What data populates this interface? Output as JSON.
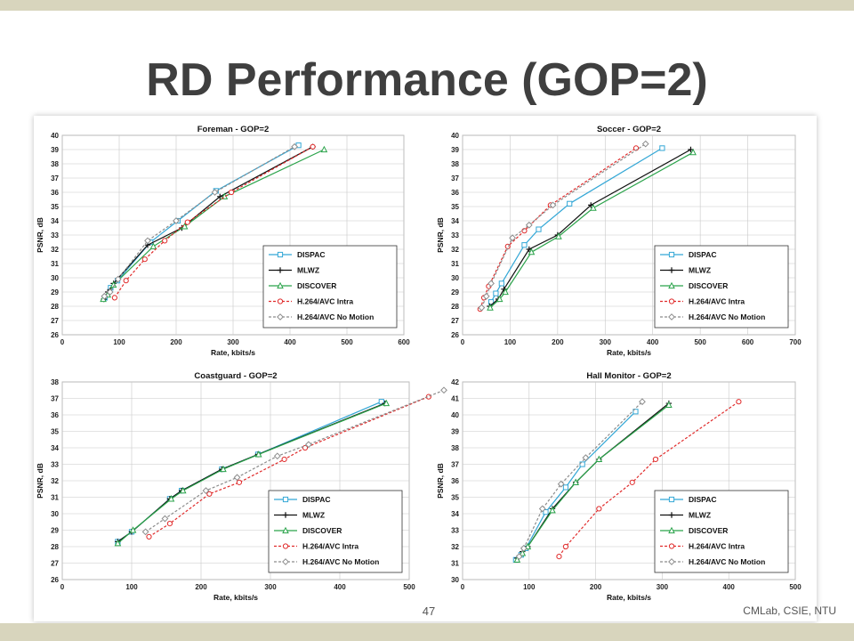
{
  "slide": {
    "title": "RD Performance (GOP=2)",
    "page_number": "47",
    "footer": "CMLab, CSIE, NTU"
  },
  "colors": {
    "DISPAC": "#33a7d6",
    "MLWZ": "#111111",
    "DISCOVER": "#2aa34a",
    "H.264/AVC Intra": "#e02b2b",
    "H.264/AVC No Motion": "#8c8c8c"
  },
  "chart_data": [
    {
      "type": "line",
      "title": "Foreman - GOP=2",
      "xlabel": "Rate, kbits/s",
      "ylabel": "PSNR, dB",
      "xlim": [
        0,
        600
      ],
      "xticks": [
        0,
        100,
        200,
        300,
        400,
        500,
        600
      ],
      "ylim": [
        26,
        40
      ],
      "yticks": [
        26,
        27,
        28,
        29,
        30,
        31,
        32,
        33,
        34,
        35,
        36,
        37,
        38,
        39,
        40
      ],
      "grid": true,
      "legend": "bottom-right",
      "series": [
        {
          "name": "DISPAC",
          "x": [
            75,
            85,
            97,
            155,
            203,
            270,
            415
          ],
          "y": [
            28.6,
            29.3,
            29.8,
            32.5,
            34.0,
            36.1,
            39.3
          ]
        },
        {
          "name": "MLWZ",
          "x": [
            73,
            80,
            90,
            150,
            210,
            277,
            440
          ],
          "y": [
            28.5,
            29.0,
            29.6,
            32.3,
            33.5,
            35.7,
            39.2
          ]
        },
        {
          "name": "DISCOVER",
          "x": [
            72,
            80,
            90,
            160,
            215,
            285,
            460
          ],
          "y": [
            28.5,
            28.8,
            29.5,
            32.2,
            33.6,
            35.7,
            39.0
          ]
        },
        {
          "name": "H.264/AVC Intra",
          "x": [
            92,
            112,
            145,
            180,
            220,
            297,
            440
          ],
          "y": [
            28.6,
            29.8,
            31.3,
            32.6,
            33.9,
            36.0,
            39.2
          ]
        },
        {
          "name": "H.264/AVC No Motion",
          "x": [
            74,
            84,
            98,
            150,
            200,
            268,
            408
          ],
          "y": [
            28.7,
            29.0,
            29.9,
            32.6,
            34.0,
            36.0,
            39.2
          ]
        }
      ]
    },
    {
      "type": "line",
      "title": "Soccer - GOP=2",
      "xlabel": "Rate, kbits/s",
      "ylabel": "PSNR, dB",
      "xlim": [
        0,
        700
      ],
      "xticks": [
        0,
        100,
        200,
        300,
        400,
        500,
        600,
        700
      ],
      "ylim": [
        26,
        40
      ],
      "yticks": [
        26,
        27,
        28,
        29,
        30,
        31,
        32,
        33,
        34,
        35,
        36,
        37,
        38,
        39,
        40
      ],
      "grid": true,
      "legend": "bottom-right",
      "series": [
        {
          "name": "DISPAC",
          "x": [
            60,
            70,
            82,
            130,
            160,
            225,
            420
          ],
          "y": [
            28.3,
            28.9,
            29.6,
            32.3,
            33.4,
            35.2,
            39.1
          ]
        },
        {
          "name": "MLWZ",
          "x": [
            57,
            75,
            87,
            140,
            200,
            270,
            480
          ],
          "y": [
            28.0,
            28.5,
            29.2,
            32.0,
            33.0,
            35.1,
            39.0
          ]
        },
        {
          "name": "DISCOVER",
          "x": [
            58,
            78,
            90,
            145,
            202,
            275,
            485
          ],
          "y": [
            27.9,
            28.5,
            29.0,
            31.8,
            32.9,
            34.9,
            38.8
          ]
        },
        {
          "name": "H.264/AVC Intra",
          "x": [
            37,
            45,
            55,
            95,
            130,
            185,
            365
          ],
          "y": [
            27.8,
            28.6,
            29.4,
            32.2,
            33.3,
            35.1,
            39.1
          ]
        },
        {
          "name": "H.264/AVC No Motion",
          "x": [
            40,
            50,
            60,
            105,
            140,
            190,
            385
          ],
          "y": [
            27.9,
            28.7,
            29.6,
            32.8,
            33.7,
            35.1,
            39.4
          ]
        }
      ]
    },
    {
      "type": "line",
      "title": "Coastguard - GOP=2",
      "xlabel": "Rate, kbits/s",
      "ylabel": "PSNR, dB",
      "xlim": [
        0,
        500
      ],
      "xticks": [
        0,
        100,
        200,
        300,
        400,
        500
      ],
      "ylim": [
        26,
        38
      ],
      "yticks": [
        26,
        27,
        28,
        29,
        30,
        31,
        32,
        33,
        34,
        35,
        36,
        37,
        38
      ],
      "grid": true,
      "legend": "bottom-right",
      "series": [
        {
          "name": "DISPAC",
          "x": [
            80,
            100,
            155,
            172,
            230,
            282,
            460
          ],
          "y": [
            28.3,
            28.9,
            30.9,
            31.4,
            32.7,
            33.6,
            36.8
          ]
        },
        {
          "name": "MLWZ",
          "x": [
            80,
            100,
            155,
            172,
            230,
            282,
            465
          ],
          "y": [
            28.3,
            28.9,
            30.9,
            31.4,
            32.7,
            33.6,
            36.7
          ]
        },
        {
          "name": "DISCOVER",
          "x": [
            80,
            102,
            157,
            174,
            232,
            283,
            467
          ],
          "y": [
            28.2,
            29.0,
            30.9,
            31.4,
            32.7,
            33.6,
            36.7
          ]
        },
        {
          "name": "H.264/AVC Intra",
          "x": [
            125,
            155,
            212,
            255,
            320,
            350,
            528
          ],
          "y": [
            28.6,
            29.4,
            31.2,
            31.9,
            33.3,
            34.0,
            37.1
          ]
        },
        {
          "name": "H.264/AVC No Motion",
          "x": [
            120,
            148,
            207,
            252,
            310,
            355,
            550
          ],
          "y": [
            28.9,
            29.7,
            31.4,
            32.2,
            33.5,
            34.2,
            37.5
          ]
        }
      ]
    },
    {
      "type": "line",
      "title": "Hall Monitor - GOP=2",
      "xlabel": "Rate, kbits/s",
      "ylabel": "PSNR, dB",
      "xlim": [
        0,
        500
      ],
      "xticks": [
        0,
        100,
        200,
        300,
        400,
        500
      ],
      "ylim": [
        30,
        42
      ],
      "yticks": [
        30,
        31,
        32,
        33,
        34,
        35,
        36,
        37,
        38,
        39,
        40,
        41,
        42
      ],
      "grid": true,
      "legend": "bottom-right",
      "series": [
        {
          "name": "DISPAC",
          "x": [
            80,
            88,
            95,
            125,
            155,
            180,
            260
          ],
          "y": [
            31.2,
            31.5,
            31.9,
            34.1,
            35.6,
            37.0,
            40.2
          ]
        },
        {
          "name": "MLWZ",
          "x": [
            82,
            90,
            98,
            135,
            170,
            205,
            310
          ],
          "y": [
            31.3,
            31.7,
            32.0,
            34.3,
            35.9,
            37.3,
            40.7
          ]
        },
        {
          "name": "DISCOVER",
          "x": [
            82,
            90,
            98,
            135,
            170,
            205,
            310
          ],
          "y": [
            31.2,
            31.6,
            32.0,
            34.2,
            35.9,
            37.3,
            40.6
          ]
        },
        {
          "name": "H.264/AVC Intra",
          "x": [
            145,
            155,
            205,
            255,
            290,
            415
          ],
          "y": [
            31.4,
            32.0,
            34.3,
            35.9,
            37.3,
            40.8
          ]
        },
        {
          "name": "H.264/AVC No Motion",
          "x": [
            85,
            92,
            120,
            148,
            185,
            270
          ],
          "y": [
            31.4,
            31.9,
            34.3,
            35.8,
            37.4,
            40.8
          ]
        }
      ]
    }
  ]
}
